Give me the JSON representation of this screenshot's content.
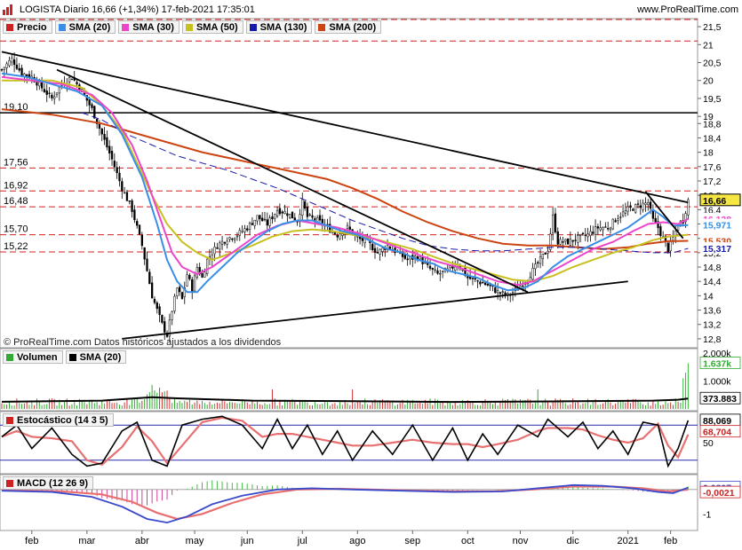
{
  "header": {
    "title": "LOGISTA Diario 16,66 (+1,34%) 17-feb-2021 17:35:01",
    "site": "www.ProRealTime.com"
  },
  "price_panel": {
    "legend": [
      {
        "label": "Precio",
        "color": "#cc2222"
      },
      {
        "label": "SMA (20)",
        "color": "#3a8ee6"
      },
      {
        "label": "SMA (30)",
        "color": "#ee44cc"
      },
      {
        "label": "SMA (50)",
        "color": "#c8c020"
      },
      {
        "label": "SMA (130)",
        "color": "#1a1aaa"
      },
      {
        "label": "SMA (200)",
        "color": "#cc4411"
      }
    ],
    "copyright": "© ProRealTime.com  Datos históricos ajustados a los dividendos"
  },
  "volume_panel": {
    "legend": [
      {
        "label": "Volumen",
        "color": "#33aa33"
      },
      {
        "label": "SMA (20)",
        "color": "#000000"
      }
    ]
  },
  "stoch_panel": {
    "legend": [
      {
        "label": "Estocástico (14 3 5)",
        "color": "#cc2222"
      }
    ]
  },
  "macd_panel": {
    "legend": [
      {
        "label": "MACD (12 26 9)",
        "color": "#cc2222"
      }
    ]
  },
  "chart_data": {
    "type": "line",
    "x_labels": [
      "feb",
      "mar",
      "abr",
      "may",
      "jun",
      "jul",
      "ago",
      "sep",
      "oct",
      "nov",
      "dic",
      "2021",
      "feb"
    ],
    "price": {
      "y_ticks": [
        "21,5",
        "21",
        "20,5",
        "20",
        "19,5",
        "19",
        "18,8",
        "18,4",
        "18",
        "17,6",
        "17,2",
        "16,8",
        "16,4",
        "16",
        "15,6",
        "15,2",
        "14,8",
        "14,4",
        "14",
        "13,6",
        "13,2",
        "12,8"
      ],
      "ylim": [
        12.6,
        21.7
      ],
      "h_levels": [
        {
          "label": "19,10",
          "value": 19.1,
          "style": "solid"
        },
        {
          "label": "17,56",
          "value": 17.56,
          "style": "dashed"
        },
        {
          "label": "16,92",
          "value": 16.92,
          "style": "dashed"
        },
        {
          "label": "16,48",
          "value": 16.48,
          "style": "dashed"
        },
        {
          "label": "15,70",
          "value": 15.7,
          "style": "dashed"
        },
        {
          "label": "15,22",
          "value": 15.22,
          "style": "dashed"
        }
      ],
      "top_dashed_levels": [
        21.7,
        21.1
      ],
      "value_tags": [
        {
          "label": "16,66",
          "value": 16.66,
          "bg": "#f5e642",
          "fg": "#000000"
        },
        {
          "label": "16,138",
          "value": 16.138,
          "bg": "#ffffff",
          "fg": "#ee44cc"
        },
        {
          "label": "15,971",
          "value": 15.971,
          "bg": "#ffffff",
          "fg": "#3a8ee6"
        },
        {
          "label": "15,530",
          "value": 15.53,
          "bg": "#ffffff",
          "fg": "#cc4411"
        },
        {
          "label": "15,317",
          "value": 15.317,
          "bg": "#ffffff",
          "fg": "#1a1aaa"
        }
      ],
      "close": [
        [
          0,
          20.3
        ],
        [
          4,
          20.6
        ],
        [
          8,
          20.2
        ],
        [
          12,
          20.1
        ],
        [
          16,
          19.8
        ],
        [
          20,
          19.5
        ],
        [
          24,
          19.9
        ],
        [
          28,
          20.1
        ],
        [
          32,
          19.7
        ],
        [
          36,
          19.2
        ],
        [
          40,
          18.5
        ],
        [
          44,
          17.8
        ],
        [
          48,
          17.0
        ],
        [
          52,
          16.4
        ],
        [
          56,
          15.4
        ],
        [
          60,
          14.0
        ],
        [
          64,
          13.2
        ],
        [
          66,
          12.9
        ],
        [
          68,
          13.6
        ],
        [
          70,
          14.2
        ],
        [
          72,
          13.9
        ],
        [
          74,
          14.6
        ],
        [
          76,
          14.2
        ],
        [
          78,
          14.8
        ],
        [
          80,
          14.5
        ],
        [
          82,
          15.0
        ],
        [
          86,
          15.4
        ],
        [
          90,
          15.6
        ],
        [
          94,
          15.7
        ],
        [
          98,
          15.9
        ],
        [
          102,
          16.2
        ],
        [
          106,
          16.0
        ],
        [
          110,
          16.4
        ],
        [
          114,
          16.3
        ],
        [
          118,
          16.1
        ],
        [
          120,
          16.6
        ],
        [
          122,
          16.2
        ],
        [
          126,
          16.1
        ],
        [
          130,
          15.9
        ],
        [
          134,
          15.7
        ],
        [
          138,
          15.9
        ],
        [
          142,
          15.6
        ],
        [
          146,
          15.5
        ],
        [
          150,
          15.2
        ],
        [
          154,
          15.4
        ],
        [
          158,
          15.2
        ],
        [
          162,
          15.0
        ],
        [
          166,
          15.1
        ],
        [
          170,
          14.8
        ],
        [
          174,
          14.6
        ],
        [
          178,
          14.7
        ],
        [
          182,
          14.9
        ],
        [
          186,
          14.5
        ],
        [
          190,
          14.4
        ],
        [
          194,
          14.3
        ],
        [
          198,
          14.1
        ],
        [
          202,
          14.0
        ],
        [
          206,
          14.2
        ],
        [
          210,
          14.5
        ],
        [
          214,
          14.9
        ],
        [
          218,
          15.3
        ],
        [
          220,
          16.2
        ],
        [
          222,
          15.5
        ],
        [
          226,
          15.5
        ],
        [
          230,
          15.6
        ],
        [
          234,
          15.7
        ],
        [
          238,
          15.9
        ],
        [
          242,
          15.9
        ],
        [
          246,
          16.2
        ],
        [
          250,
          16.4
        ],
        [
          254,
          16.5
        ],
        [
          258,
          16.6
        ],
        [
          260,
          16.1
        ],
        [
          262,
          15.9
        ],
        [
          264,
          15.6
        ],
        [
          266,
          15.3
        ],
        [
          268,
          15.6
        ],
        [
          270,
          16.0
        ],
        [
          272,
          16.1
        ],
        [
          274,
          16.66
        ]
      ],
      "sma20": [
        [
          0,
          20.2
        ],
        [
          10,
          20.1
        ],
        [
          20,
          19.9
        ],
        [
          30,
          19.7
        ],
        [
          40,
          19.3
        ],
        [
          48,
          18.5
        ],
        [
          56,
          17.3
        ],
        [
          62,
          16.0
        ],
        [
          66,
          15.0
        ],
        [
          70,
          14.4
        ],
        [
          74,
          14.1
        ],
        [
          78,
          14.1
        ],
        [
          82,
          14.4
        ],
        [
          88,
          14.8
        ],
        [
          94,
          15.2
        ],
        [
          100,
          15.5
        ],
        [
          106,
          15.8
        ],
        [
          112,
          16.0
        ],
        [
          118,
          16.1
        ],
        [
          124,
          16.1
        ],
        [
          130,
          15.95
        ],
        [
          136,
          15.8
        ],
        [
          142,
          15.7
        ],
        [
          148,
          15.5
        ],
        [
          154,
          15.3
        ],
        [
          160,
          15.2
        ],
        [
          166,
          15.0
        ],
        [
          172,
          14.9
        ],
        [
          178,
          14.7
        ],
        [
          184,
          14.6
        ],
        [
          190,
          14.5
        ],
        [
          196,
          14.3
        ],
        [
          202,
          14.15
        ],
        [
          208,
          14.2
        ],
        [
          214,
          14.4
        ],
        [
          220,
          14.8
        ],
        [
          226,
          15.1
        ],
        [
          232,
          15.3
        ],
        [
          238,
          15.5
        ],
        [
          244,
          15.7
        ],
        [
          250,
          15.9
        ],
        [
          256,
          16.2
        ],
        [
          260,
          16.4
        ],
        [
          264,
          16.2
        ],
        [
          268,
          15.95
        ],
        [
          274,
          15.97
        ]
      ],
      "sma30": [
        [
          0,
          20.1
        ],
        [
          12,
          20.0
        ],
        [
          24,
          19.9
        ],
        [
          36,
          19.6
        ],
        [
          44,
          19.1
        ],
        [
          52,
          18.2
        ],
        [
          58,
          17.2
        ],
        [
          64,
          16.0
        ],
        [
          68,
          15.2
        ],
        [
          72,
          14.8
        ],
        [
          78,
          14.6
        ],
        [
          84,
          14.8
        ],
        [
          90,
          15.1
        ],
        [
          96,
          15.4
        ],
        [
          102,
          15.7
        ],
        [
          110,
          15.95
        ],
        [
          118,
          16.1
        ],
        [
          126,
          16.0
        ],
        [
          134,
          15.9
        ],
        [
          142,
          15.75
        ],
        [
          150,
          15.55
        ],
        [
          158,
          15.35
        ],
        [
          166,
          15.15
        ],
        [
          174,
          14.95
        ],
        [
          182,
          14.8
        ],
        [
          190,
          14.6
        ],
        [
          198,
          14.4
        ],
        [
          206,
          14.3
        ],
        [
          212,
          14.4
        ],
        [
          220,
          14.7
        ],
        [
          228,
          15.0
        ],
        [
          236,
          15.3
        ],
        [
          244,
          15.5
        ],
        [
          252,
          15.8
        ],
        [
          258,
          16.0
        ],
        [
          264,
          16.05
        ],
        [
          270,
          16.0
        ],
        [
          274,
          16.14
        ]
      ],
      "sma50": [
        [
          0,
          20.0
        ],
        [
          20,
          20.0
        ],
        [
          32,
          19.8
        ],
        [
          40,
          19.3
        ],
        [
          48,
          18.6
        ],
        [
          54,
          17.7
        ],
        [
          60,
          16.8
        ],
        [
          66,
          16.0
        ],
        [
          72,
          15.5
        ],
        [
          78,
          15.2
        ],
        [
          84,
          15.0
        ],
        [
          92,
          15.2
        ],
        [
          100,
          15.4
        ],
        [
          108,
          15.65
        ],
        [
          116,
          15.8
        ],
        [
          124,
          15.85
        ],
        [
          132,
          15.8
        ],
        [
          140,
          15.7
        ],
        [
          148,
          15.6
        ],
        [
          156,
          15.45
        ],
        [
          164,
          15.3
        ],
        [
          172,
          15.1
        ],
        [
          180,
          14.9
        ],
        [
          188,
          14.75
        ],
        [
          196,
          14.6
        ],
        [
          204,
          14.45
        ],
        [
          212,
          14.4
        ],
        [
          220,
          14.55
        ],
        [
          228,
          14.8
        ],
        [
          236,
          15.0
        ],
        [
          244,
          15.2
        ],
        [
          252,
          15.35
        ],
        [
          260,
          15.55
        ],
        [
          266,
          15.65
        ],
        [
          274,
          15.7
        ]
      ],
      "sma130": [
        [
          32,
          19.1
        ],
        [
          40,
          18.9
        ],
        [
          50,
          18.5
        ],
        [
          60,
          18.2
        ],
        [
          70,
          17.9
        ],
        [
          80,
          17.7
        ],
        [
          90,
          17.5
        ],
        [
          100,
          17.25
        ],
        [
          110,
          17.0
        ],
        [
          120,
          16.7
        ],
        [
          130,
          16.4
        ],
        [
          140,
          16.1
        ],
        [
          150,
          15.85
        ],
        [
          160,
          15.6
        ],
        [
          170,
          15.4
        ],
        [
          180,
          15.3
        ],
        [
          190,
          15.25
        ],
        [
          200,
          15.25
        ],
        [
          210,
          15.3
        ],
        [
          220,
          15.35
        ],
        [
          230,
          15.35
        ],
        [
          240,
          15.3
        ],
        [
          250,
          15.25
        ],
        [
          260,
          15.2
        ],
        [
          268,
          15.2
        ],
        [
          274,
          15.32
        ]
      ],
      "sma200": [
        [
          0,
          19.2
        ],
        [
          20,
          19.05
        ],
        [
          40,
          18.8
        ],
        [
          60,
          18.4
        ],
        [
          80,
          18.0
        ],
        [
          100,
          17.7
        ],
        [
          120,
          17.4
        ],
        [
          130,
          17.25
        ],
        [
          140,
          17.0
        ],
        [
          150,
          16.7
        ],
        [
          160,
          16.35
        ],
        [
          170,
          16.05
        ],
        [
          180,
          15.8
        ],
        [
          190,
          15.6
        ],
        [
          200,
          15.45
        ],
        [
          210,
          15.4
        ],
        [
          220,
          15.4
        ],
        [
          230,
          15.35
        ],
        [
          240,
          15.3
        ],
        [
          250,
          15.35
        ],
        [
          258,
          15.45
        ],
        [
          266,
          15.52
        ],
        [
          274,
          15.53
        ]
      ],
      "trendlines": [
        [
          [
            0,
            20.8
          ],
          [
            274,
            16.6
          ]
        ],
        [
          [
            22,
            20.3
          ],
          [
            210,
            14.1
          ]
        ],
        [
          [
            48,
            12.8
          ],
          [
            250,
            14.4
          ]
        ],
        [
          [
            257,
            16.9
          ],
          [
            272,
            15.6
          ]
        ]
      ]
    },
    "volume": {
      "y_ticks": [
        "2.000k",
        "1.637k",
        "1.000k",
        "373.883"
      ],
      "ylim": [
        0,
        2100
      ],
      "last_value": "1.637k",
      "sma_value": "373.883"
    },
    "stochastic": {
      "y_ticks": [
        "88,069",
        "68,704",
        "50"
      ],
      "ylim": [
        0,
        100
      ],
      "k_value": "88,069",
      "d_value": "68,704"
    },
    "macd": {
      "y_ticks": [
        "0,0807",
        "-0,0021",
        "-1"
      ],
      "ylim": [
        -1.6,
        0.5
      ],
      "macd_value": "0,0807",
      "signal_value": "-0,0021"
    }
  }
}
